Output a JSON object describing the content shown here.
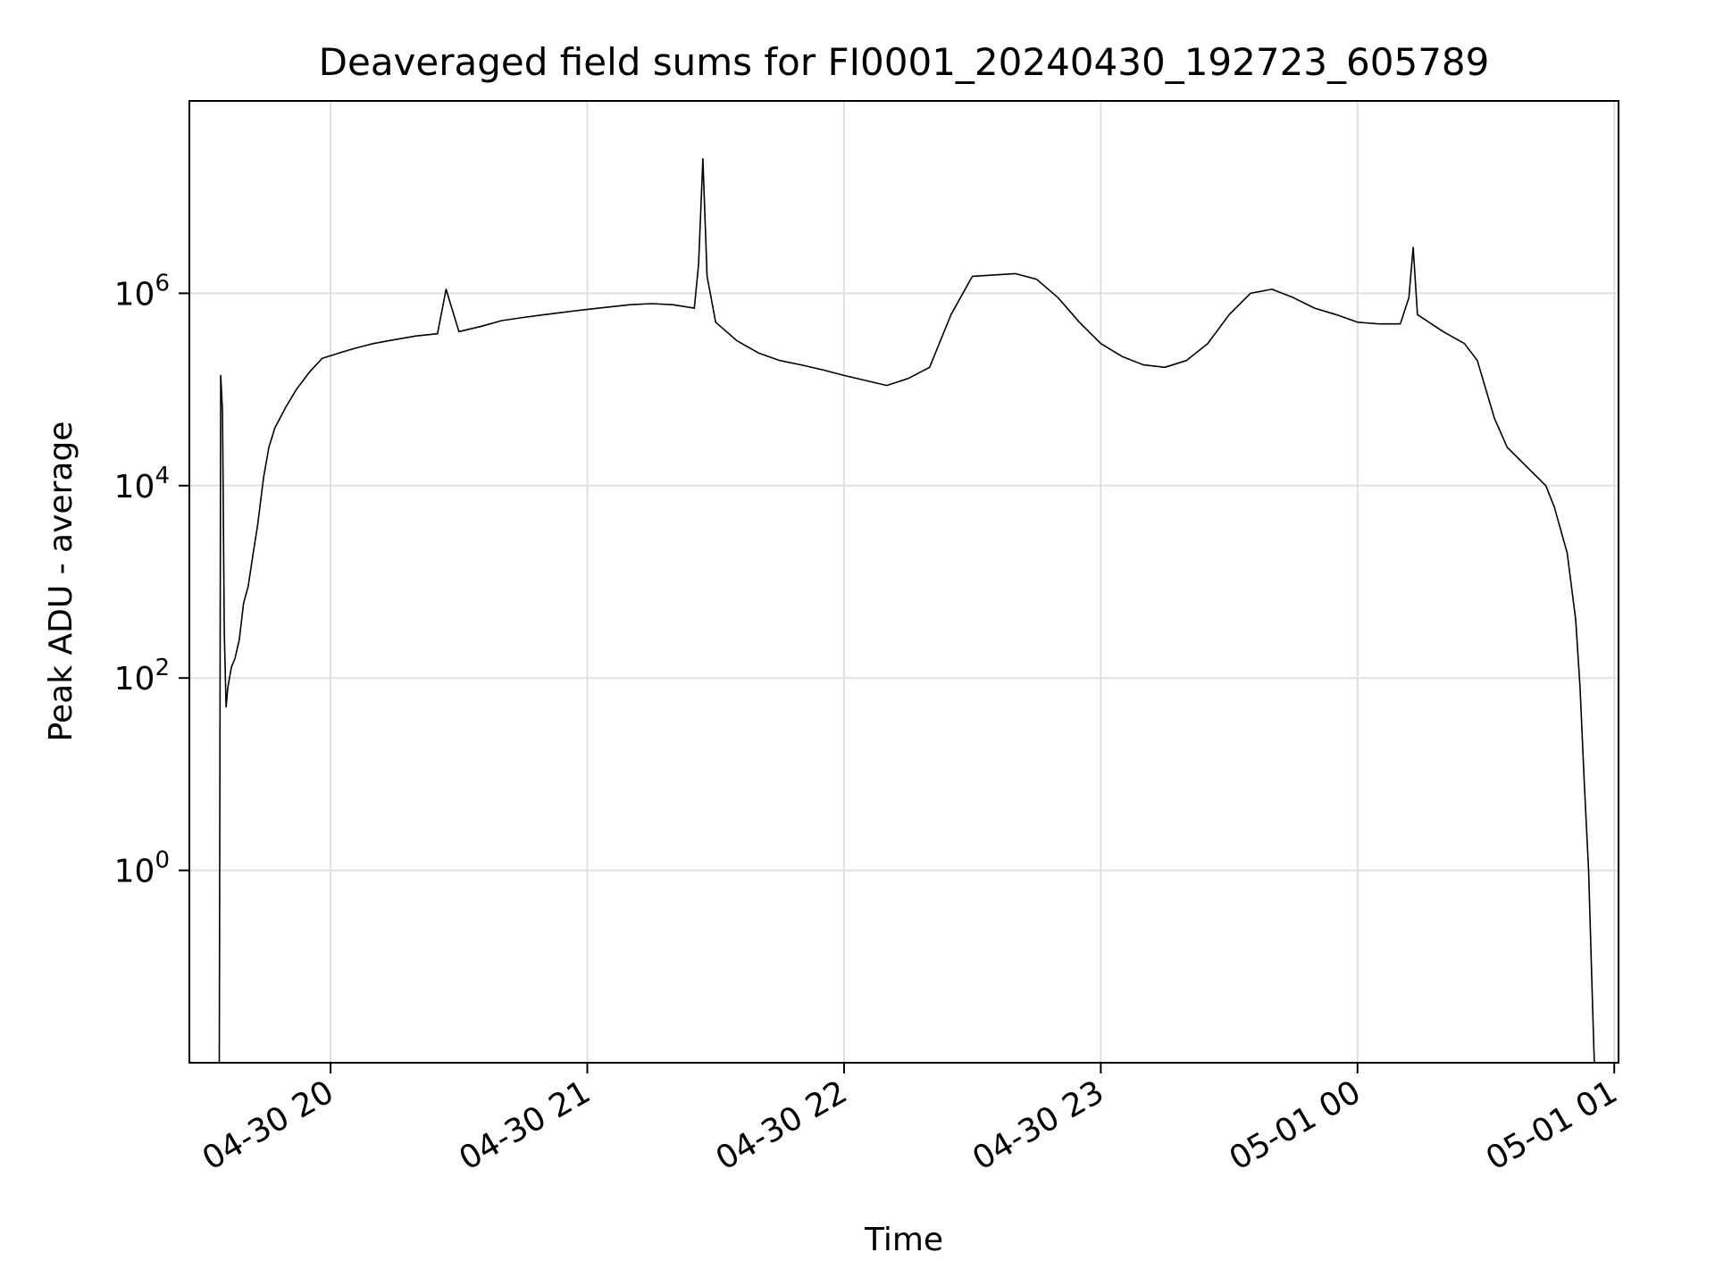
{
  "chart_data": {
    "type": "line",
    "title": "Deaveraged field sums for FI0001_20240430_192723_605789",
    "xlabel": "Time",
    "ylabel": "Peak ADU - average",
    "yscale": "log",
    "grid": true,
    "legend": "none",
    "line_color": "#000000",
    "xlim": [
      "2024-04-30 19:27",
      "2024-05-01 01:01"
    ],
    "ylim": [
      0.01,
      100000000
    ],
    "x_ticks": [
      {
        "value": "2024-04-30 20:00",
        "label": "04-30 20"
      },
      {
        "value": "2024-04-30 21:00",
        "label": "04-30 21"
      },
      {
        "value": "2024-04-30 22:00",
        "label": "04-30 22"
      },
      {
        "value": "2024-04-30 23:00",
        "label": "04-30 23"
      },
      {
        "value": "2024-05-01 00:00",
        "label": "05-01 00"
      },
      {
        "value": "2024-05-01 01:00",
        "label": "05-01 01"
      }
    ],
    "y_ticks": [
      {
        "value": 1,
        "base": "10",
        "exp": "0"
      },
      {
        "value": 100,
        "base": "10",
        "exp": "2"
      },
      {
        "value": 10000,
        "base": "10",
        "exp": "4"
      },
      {
        "value": 1000000,
        "base": "10",
        "exp": "6"
      }
    ],
    "series": [
      {
        "x": [
          "2024-04-30 19:34:00",
          "2024-04-30 19:34:20",
          "2024-04-30 19:34:45",
          "2024-04-30 19:35:10",
          "2024-04-30 19:35:35",
          "2024-04-30 19:36:00",
          "2024-04-30 19:36:50",
          "2024-04-30 19:37:40",
          "2024-04-30 19:38:40",
          "2024-04-30 19:39:40",
          "2024-04-30 19:40:45",
          "2024-04-30 19:41:55",
          "2024-04-30 19:43:00",
          "2024-04-30 19:44:20",
          "2024-04-30 19:45:35",
          "2024-04-30 19:47:00",
          "2024-04-30 19:49:30",
          "2024-04-30 19:52:00",
          "2024-04-30 19:55:00",
          "2024-04-30 19:58:00",
          "2024-04-30 20:02:00",
          "2024-04-30 20:06:00",
          "2024-04-30 20:10:00",
          "2024-04-30 20:15:00",
          "2024-04-30 20:20:00",
          "2024-04-30 20:25:00",
          "2024-04-30 20:27:00",
          "2024-04-30 20:30:00",
          "2024-04-30 20:35:00",
          "2024-04-30 20:40:00",
          "2024-04-30 20:45:00",
          "2024-04-30 20:50:00",
          "2024-04-30 20:55:00",
          "2024-04-30 21:00:00",
          "2024-04-30 21:05:00",
          "2024-04-30 21:10:00",
          "2024-04-30 21:15:00",
          "2024-04-30 21:20:00",
          "2024-04-30 21:25:00",
          "2024-04-30 21:26:00",
          "2024-04-30 21:27:00",
          "2024-04-30 21:28:00",
          "2024-04-30 21:30:00",
          "2024-04-30 21:35:00",
          "2024-04-30 21:40:00",
          "2024-04-30 21:45:00",
          "2024-04-30 21:50:00",
          "2024-04-30 21:55:00",
          "2024-04-30 22:00:00",
          "2024-04-30 22:10:00",
          "2024-04-30 22:15:00",
          "2024-04-30 22:20:00",
          "2024-04-30 22:25:00",
          "2024-04-30 22:30:00",
          "2024-04-30 22:40:00",
          "2024-04-30 22:45:00",
          "2024-04-30 22:50:00",
          "2024-04-30 22:55:00",
          "2024-04-30 23:00:00",
          "2024-04-30 23:05:00",
          "2024-04-30 23:10:00",
          "2024-04-30 23:15:00",
          "2024-04-30 23:20:00",
          "2024-04-30 23:25:00",
          "2024-04-30 23:30:00",
          "2024-04-30 23:35:00",
          "2024-04-30 23:40:00",
          "2024-04-30 23:45:00",
          "2024-04-30 23:50:00",
          "2024-04-30 23:55:00",
          "2024-05-01 00:00:00",
          "2024-05-01 00:05:00",
          "2024-05-01 00:10:00",
          "2024-05-01 00:12:00",
          "2024-05-01 00:13:00",
          "2024-05-01 00:14:00",
          "2024-05-01 00:20:00",
          "2024-05-01 00:25:00",
          "2024-05-01 00:28:00",
          "2024-05-01 00:30:00",
          "2024-05-01 00:32:00",
          "2024-05-01 00:35:00",
          "2024-05-01 00:40:00",
          "2024-05-01 00:44:00",
          "2024-05-01 00:46:00",
          "2024-05-01 00:49:00",
          "2024-05-01 00:51:00",
          "2024-05-01 00:52:00",
          "2024-05-01 00:53:00",
          "2024-05-01 00:54:00",
          "2024-05-01 00:55:00",
          "2024-05-01 00:55:20"
        ],
        "y": [
          0.01,
          140000,
          60000,
          300,
          50,
          80,
          130,
          160,
          250,
          600,
          900,
          2000,
          4000,
          12000,
          25000,
          40000,
          65000,
          100000,
          150000,
          210000,
          240000,
          270000,
          300000,
          330000,
          360000,
          380000,
          1100000,
          400000,
          450000,
          520000,
          560000,
          600000,
          640000,
          680000,
          720000,
          760000,
          780000,
          760000,
          700000,
          2000000,
          25000000,
          1500000,
          500000,
          320000,
          240000,
          200000,
          180000,
          160000,
          140000,
          110000,
          130000,
          170000,
          600000,
          1500000,
          1600000,
          1400000,
          900000,
          500000,
          300000,
          220000,
          180000,
          170000,
          200000,
          300000,
          600000,
          1000000,
          1100000,
          900000,
          700000,
          600000,
          500000,
          480000,
          480000,
          900000,
          3000000,
          600000,
          400000,
          300000,
          200000,
          100000,
          50000,
          25000,
          15000,
          10000,
          6000,
          2000,
          400,
          80,
          8,
          1,
          0.03,
          0.01
        ]
      }
    ]
  }
}
